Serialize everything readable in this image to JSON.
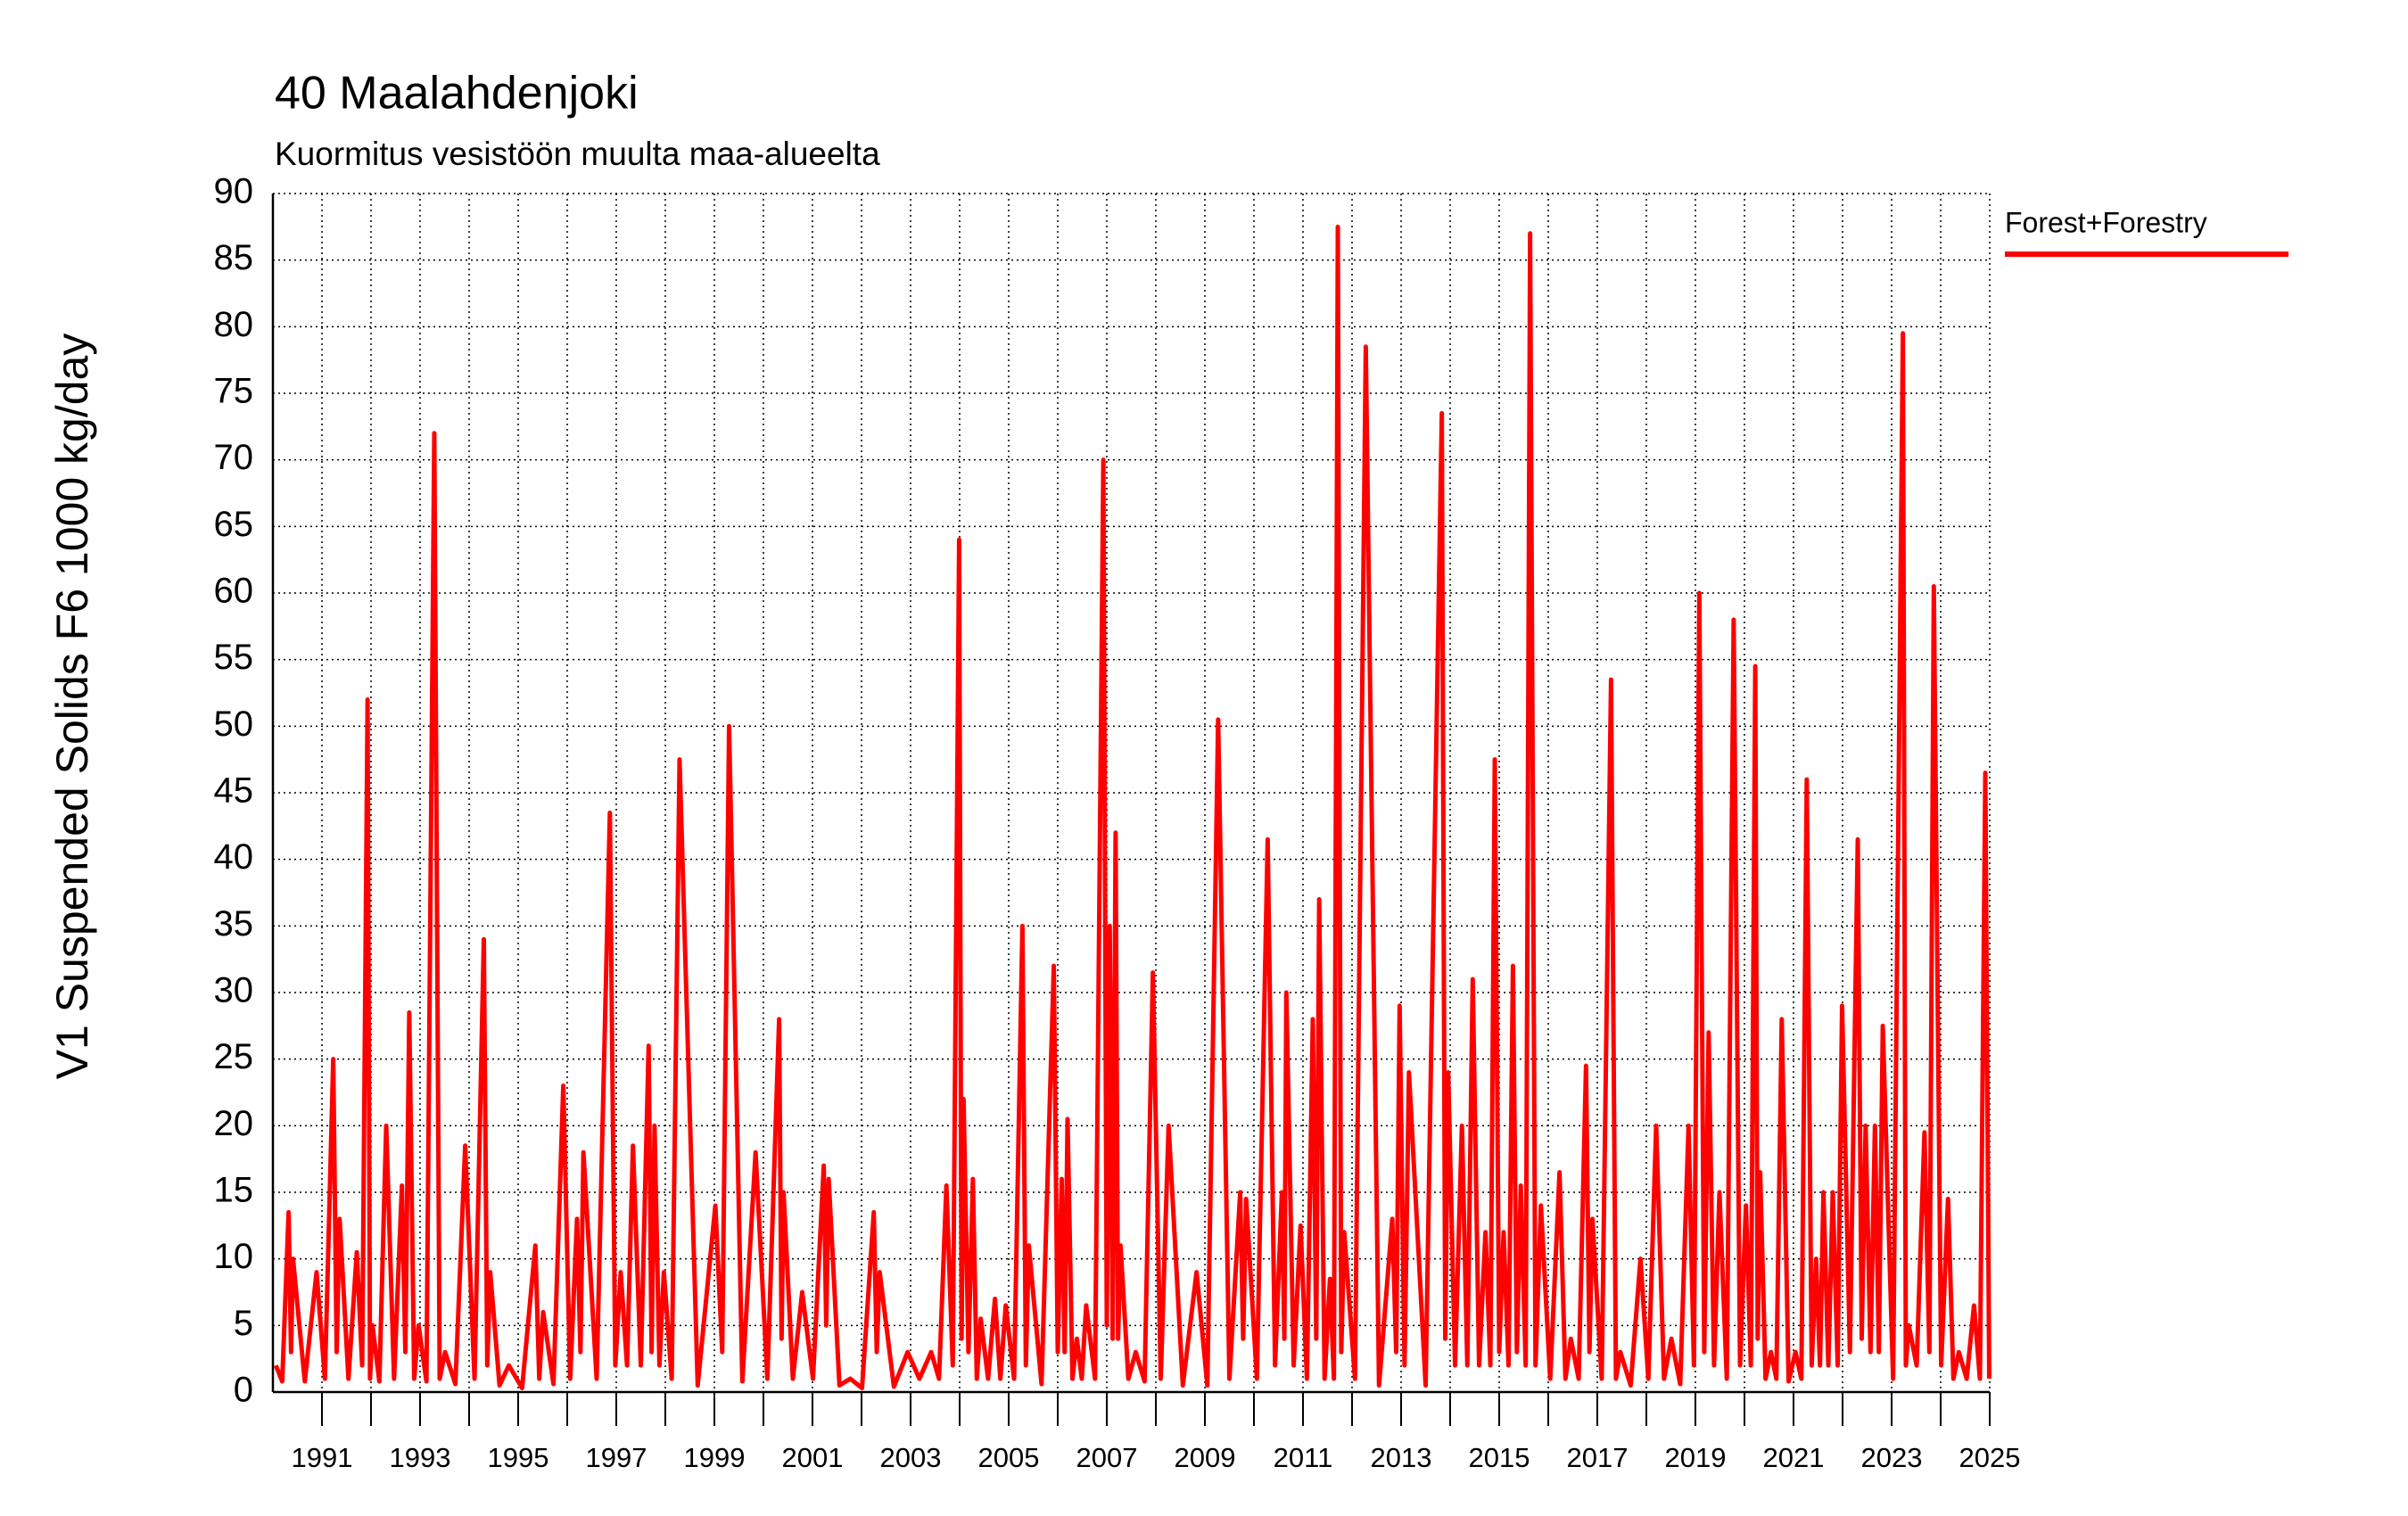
{
  "chart_data": {
    "type": "line",
    "title": "40 Maalahdenjoki",
    "subtitle": "Kuormitus vesistöön muulta maa-alueelta",
    "y_label": "V1 Suspended Solids F6 1000 kg/day",
    "xlim": [
      1990,
      2025
    ],
    "xticks": [
      1991,
      1993,
      1995,
      1997,
      1999,
      2001,
      2003,
      2005,
      2007,
      2009,
      2011,
      2013,
      2015,
      2017,
      2019,
      2021,
      2023,
      2025
    ],
    "xminor_ticks": [
      1992,
      1994,
      1996,
      1998,
      2000,
      2002,
      2004,
      2006,
      2008,
      2010,
      2012,
      2014,
      2016,
      2018,
      2020,
      2022,
      2024
    ],
    "ylim": [
      0,
      90
    ],
    "yticks": [
      0,
      5,
      10,
      15,
      20,
      25,
      30,
      35,
      40,
      45,
      50,
      55,
      60,
      65,
      70,
      75,
      80,
      85,
      90
    ],
    "grid": true,
    "legend": "right",
    "x": [
      1990.06,
      1990.19,
      1990.32,
      1990.37,
      1990.41,
      1990.65,
      1990.89,
      1991.06,
      1991.23,
      1991.3,
      1991.36,
      1991.54,
      1991.71,
      1991.82,
      1991.93,
      1991.98,
      1992.03,
      1992.17,
      1992.31,
      1992.47,
      1992.63,
      1992.7,
      1992.78,
      1992.88,
      1992.97,
      1993.13,
      1993.29,
      1993.4,
      1993.51,
      1993.72,
      1993.92,
      1994.11,
      1994.3,
      1994.37,
      1994.43,
      1994.62,
      1994.81,
      1995.08,
      1995.35,
      1995.43,
      1995.51,
      1995.72,
      1995.92,
      1996.06,
      1996.2,
      1996.27,
      1996.33,
      1996.6,
      1996.87,
      1996.98,
      1997.09,
      1997.22,
      1997.34,
      1997.5,
      1997.66,
      1997.72,
      1997.78,
      1997.88,
      1997.97,
      1998.13,
      1998.29,
      1998.66,
      1999.02,
      1999.16,
      1999.3,
      1999.57,
      1999.84,
      2000.08,
      2000.32,
      2000.37,
      2000.41,
      2000.6,
      2000.79,
      2001.01,
      2001.23,
      2001.28,
      2001.33,
      2001.55,
      2001.77,
      2002.01,
      2002.25,
      2002.31,
      2002.37,
      2002.66,
      2002.94,
      2003.18,
      2003.42,
      2003.58,
      2003.73,
      2003.86,
      2003.99,
      2004.04,
      2004.08,
      2004.18,
      2004.27,
      2004.35,
      2004.43,
      2004.58,
      2004.72,
      2004.83,
      2004.94,
      2005.11,
      2005.28,
      2005.35,
      2005.41,
      2005.67,
      2005.92,
      2006.0,
      2006.08,
      2006.14,
      2006.2,
      2006.3,
      2006.39,
      2006.49,
      2006.58,
      2006.76,
      2006.93,
      2007.0,
      2007.06,
      2007.12,
      2007.18,
      2007.23,
      2007.28,
      2007.44,
      2007.59,
      2007.77,
      2007.94,
      2008.1,
      2008.26,
      2008.55,
      2008.83,
      2009.05,
      2009.27,
      2009.5,
      2009.72,
      2009.78,
      2009.84,
      2010.06,
      2010.28,
      2010.43,
      2010.57,
      2010.62,
      2010.66,
      2010.81,
      2010.95,
      2011.08,
      2011.2,
      2011.27,
      2011.33,
      2011.44,
      2011.55,
      2011.63,
      2011.71,
      2011.78,
      2011.84,
      2012.06,
      2012.28,
      2012.55,
      2012.82,
      2012.9,
      2012.97,
      2013.07,
      2013.16,
      2013.5,
      2013.83,
      2013.9,
      2013.96,
      2014.1,
      2014.24,
      2014.35,
      2014.46,
      2014.59,
      2014.72,
      2014.82,
      2014.91,
      2015.0,
      2015.09,
      2015.19,
      2015.28,
      2015.36,
      2015.44,
      2015.54,
      2015.63,
      2015.74,
      2015.85,
      2016.04,
      2016.23,
      2016.35,
      2016.46,
      2016.62,
      2016.77,
      2016.84,
      2016.9,
      2017.09,
      2017.28,
      2017.38,
      2017.47,
      2017.68,
      2017.88,
      2018.04,
      2018.2,
      2018.36,
      2018.51,
      2018.69,
      2018.86,
      2018.97,
      2019.08,
      2019.18,
      2019.27,
      2019.38,
      2019.49,
      2019.64,
      2019.78,
      2019.91,
      2020.03,
      2020.13,
      2020.22,
      2020.27,
      2020.32,
      2020.43,
      2020.54,
      2020.65,
      2020.76,
      2020.9,
      2021.04,
      2021.16,
      2021.27,
      2021.37,
      2021.46,
      2021.54,
      2021.61,
      2021.71,
      2021.8,
      2021.9,
      2021.99,
      2022.15,
      2022.31,
      2022.39,
      2022.47,
      2022.57,
      2022.66,
      2022.74,
      2022.82,
      2023.03,
      2023.23,
      2023.29,
      2023.35,
      2023.51,
      2023.67,
      2023.77,
      2023.86,
      2024.01,
      2024.15,
      2024.26,
      2024.37,
      2024.53,
      2024.68,
      2024.8,
      2024.91,
      2024.99
    ],
    "series": [
      {
        "name": "Forest+Forestry",
        "color": "#ff0000",
        "values": [
          2,
          0.8,
          13.5,
          3,
          10,
          0.8,
          9,
          1,
          25,
          3,
          13,
          1,
          10.5,
          2,
          52,
          1,
          5,
          0.8,
          20,
          1,
          15.5,
          3,
          28.5,
          1,
          5,
          0.8,
          72,
          1,
          3,
          0.6,
          18.5,
          1,
          34,
          2,
          9,
          0.5,
          2,
          0.3,
          11,
          1,
          6,
          0.6,
          23,
          1,
          13,
          3,
          18,
          1,
          43.5,
          2,
          9,
          2,
          18.5,
          2,
          26,
          3,
          20,
          2,
          9,
          1,
          47.5,
          0.5,
          14,
          3,
          50,
          0.8,
          18,
          1,
          28,
          4,
          15,
          1,
          7.5,
          1,
          17,
          5,
          16,
          0.5,
          1,
          0.3,
          13.5,
          3,
          9,
          0.4,
          3,
          1,
          3,
          1,
          15.5,
          2,
          64,
          4,
          22,
          3,
          16,
          1,
          5.5,
          1,
          7,
          1,
          6.5,
          1,
          35,
          2,
          11,
          0.6,
          32,
          3,
          16,
          3,
          20.5,
          1,
          4,
          1,
          6.5,
          1,
          70,
          5,
          35,
          4,
          42,
          4,
          11,
          1,
          3,
          0.8,
          31.5,
          1,
          20,
          0.5,
          9,
          0.5,
          50.5,
          1,
          15,
          4,
          14.5,
          1,
          41.5,
          2,
          15,
          4,
          30,
          2,
          12.5,
          1,
          28,
          4,
          37,
          1,
          8.5,
          1,
          87.5,
          3,
          12,
          1,
          78.5,
          0.5,
          13,
          3,
          29,
          2,
          24,
          0.5,
          73.5,
          4,
          24,
          2,
          20,
          2,
          31,
          2,
          12,
          2,
          47.5,
          3,
          12,
          2,
          32,
          3,
          15.5,
          2,
          87,
          2,
          14,
          1,
          16.5,
          1,
          4,
          1,
          24.5,
          3,
          13,
          1,
          53.5,
          1,
          3,
          0.5,
          10,
          1,
          20,
          1,
          4,
          0.6,
          20,
          2,
          60,
          3,
          27,
          2,
          15,
          1,
          58,
          2,
          14,
          2,
          54.5,
          4,
          16.5,
          1,
          3,
          1,
          28,
          0.8,
          3,
          1,
          46,
          2,
          10,
          2,
          15,
          2,
          15,
          2,
          29,
          3,
          41.5,
          4,
          20,
          3,
          20,
          3,
          27.5,
          1,
          79.5,
          2,
          5,
          2,
          19.5,
          3,
          60.5,
          2,
          14.5,
          1,
          3,
          1,
          6.5,
          1,
          46.5,
          1
        ]
      }
    ]
  }
}
